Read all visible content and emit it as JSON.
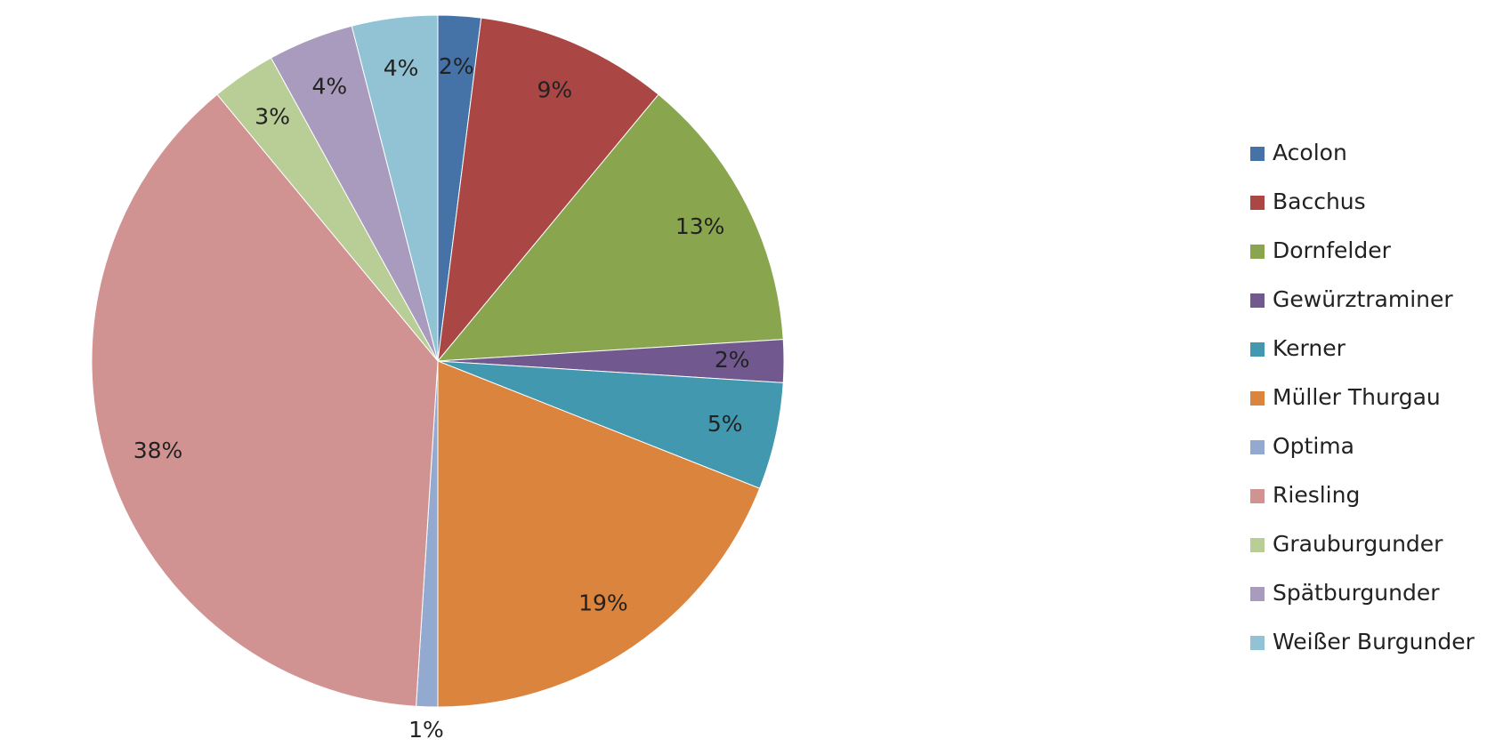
{
  "chart_data": {
    "type": "pie",
    "categories": [
      "Acolon",
      "Bacchus",
      "Dornfelder",
      "Gewürztraminer",
      "Kerner",
      "Müller Thurgau",
      "Optima",
      "Riesling",
      "Grauburgunder",
      "Spätburgunder",
      "Weißer Burgunder"
    ],
    "values": [
      2,
      9,
      13,
      2,
      5,
      19,
      1,
      38,
      3,
      4,
      4
    ],
    "value_labels": [
      "2%",
      "9%",
      "13%",
      "2%",
      "5%",
      "19%",
      "1%",
      "38%",
      "3%",
      "4%",
      "4%"
    ],
    "colors": [
      "#4572a7",
      "#aa4643",
      "#89a54e",
      "#71588f",
      "#4198af",
      "#db843d",
      "#93a9cf",
      "#d19392",
      "#b9cd96",
      "#a99bbd",
      "#92c3d4"
    ],
    "legend": "right"
  }
}
